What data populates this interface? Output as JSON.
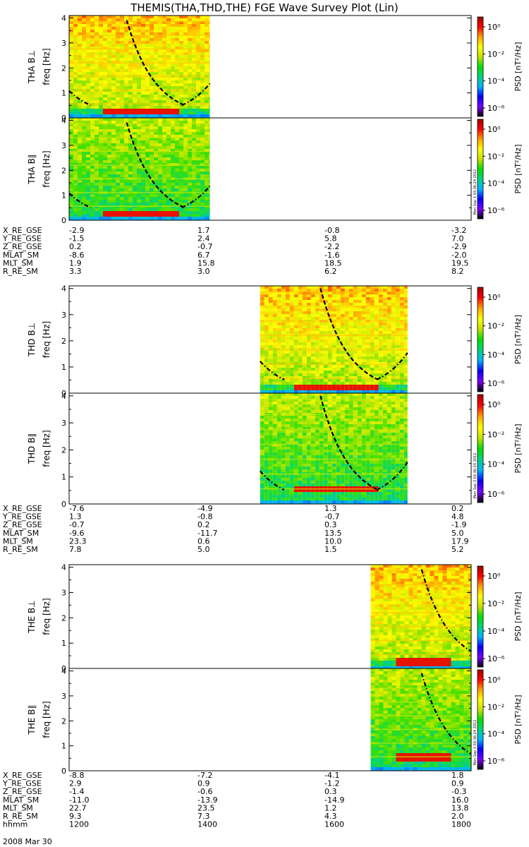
{
  "title": "THEMIS(THA,THD,THE) FGE Wave Survey Plot (Lin)",
  "colors": {
    "colormap": [
      "#000000",
      "#7b00ff",
      "#0000ff",
      "#00b4ff",
      "#00d47a",
      "#00e000",
      "#c8e000",
      "#ffff00",
      "#ffa000",
      "#ff0000",
      "#a00000"
    ]
  },
  "chart_data": [
    {
      "type": "heatmap",
      "panel": "THA B⊥",
      "ylabel": "THA B⊥",
      "ylabel2": "freq [Hz]",
      "xlim": [
        1200,
        1800
      ],
      "ylim": [
        0,
        4.1
      ],
      "yticks": [
        0,
        1,
        2,
        3,
        4
      ],
      "data_interval": [
        1200,
        1410
      ],
      "intensity": 0.55,
      "low_band": 0.3,
      "cyclotron_curves": [
        {
          "center": 1300,
          "style": "dashdot"
        },
        {
          "center": 1440,
          "style": "dashed"
        }
      ],
      "colorbar": {
        "label": "PSD [nT²/Hz]",
        "ticks": [
          "10⁰",
          "10⁻²",
          "10⁻⁴",
          "10⁻⁶"
        ]
      }
    },
    {
      "type": "heatmap",
      "panel": "THA B∥",
      "ylabel": "THA B∥",
      "ylabel2": "freq [Hz]",
      "xlim": [
        1200,
        1800
      ],
      "ylim": [
        0,
        4.1
      ],
      "yticks": [
        0,
        1,
        2,
        3,
        4
      ],
      "data_interval": [
        1200,
        1410
      ],
      "intensity": 0.35,
      "low_band": 0.3,
      "cyclotron_curves": [
        {
          "center": 1300,
          "style": "dashdot"
        },
        {
          "center": 1440,
          "style": "dashed"
        }
      ],
      "colorbar": {
        "label": "PSD [nT²/Hz]",
        "ticks": [
          "10⁰",
          "10⁻²",
          "10⁻⁴",
          "10⁻⁶"
        ]
      }
    },
    {
      "type": "heatmap",
      "panel": "THD B⊥",
      "ylabel": "THD B⊥",
      "ylabel2": "freq [Hz]",
      "xlim": [
        1200,
        1800
      ],
      "ylim": [
        0,
        4.1
      ],
      "yticks": [
        0,
        1,
        2,
        3,
        4
      ],
      "data_interval": [
        1485,
        1705
      ],
      "intensity": 0.55,
      "low_band": 0.3,
      "cyclotron_curves": [
        {
          "center": 1590,
          "style": "dashdot"
        },
        {
          "center": 1730,
          "style": "dashed"
        }
      ],
      "colorbar": {
        "label": "PSD [nT²/Hz]",
        "ticks": [
          "10⁰",
          "10⁻²",
          "10⁻⁴",
          "10⁻⁶"
        ]
      }
    },
    {
      "type": "heatmap",
      "panel": "THD B∥",
      "ylabel": "THD B∥",
      "ylabel2": "freq [Hz]",
      "xlim": [
        1200,
        1800
      ],
      "ylim": [
        0,
        4.1
      ],
      "yticks": [
        0,
        1,
        2,
        3,
        4
      ],
      "data_interval": [
        1485,
        1705
      ],
      "intensity": 0.35,
      "low_band": 0.6,
      "cyclotron_curves": [
        {
          "center": 1590,
          "style": "dashdot"
        },
        {
          "center": 1730,
          "style": "dashed"
        }
      ],
      "colorbar": {
        "label": "PSD [nT²/Hz]",
        "ticks": [
          "10⁰",
          "10⁻²",
          "10⁻⁴",
          "10⁻⁶"
        ]
      }
    },
    {
      "type": "heatmap",
      "panel": "THE B⊥",
      "ylabel": "THE B⊥",
      "ylabel2": "freq [Hz]",
      "xlim": [
        1200,
        1800
      ],
      "ylim": [
        0,
        4.1
      ],
      "yticks": [
        0,
        1,
        2,
        3,
        4
      ],
      "data_interval": [
        1650,
        1800
      ],
      "intensity": 0.55,
      "low_band": 0.3,
      "cyclotron_curves": [
        {
          "center": 1880,
          "style": "dashdot"
        }
      ],
      "colorbar": {
        "label": "PSD [nT²/Hz]",
        "ticks": [
          "10⁰",
          "10⁻²",
          "10⁻⁴",
          "10⁻⁶"
        ]
      }
    },
    {
      "type": "heatmap",
      "panel": "THE B∥",
      "ylabel": "THE B∥",
      "ylabel2": "freq [Hz]",
      "xlim": [
        1200,
        1800
      ],
      "ylim": [
        0,
        4.1
      ],
      "yticks": [
        0,
        1,
        2,
        3,
        4
      ],
      "data_interval": [
        1650,
        1800
      ],
      "intensity": 0.35,
      "low_band": 0.6,
      "cyclotron_curves": [
        {
          "center": 1880,
          "style": "dashdot"
        }
      ],
      "colorbar": {
        "label": "PSD [nT²/Hz]",
        "ticks": [
          "10⁰",
          "10⁻²",
          "10⁻⁴",
          "10⁻⁶"
        ]
      }
    }
  ],
  "stamp": "Mon Sep 3 03:36:24 2012",
  "ephemeris": [
    {
      "rows": [
        {
          "label": "X_RE_GSE",
          "values": [
            "-2.9",
            "1.7",
            "-0.8",
            "-3.2"
          ]
        },
        {
          "label": "Y_RE_GSE",
          "values": [
            "-1.5",
            "2.4",
            "5.8",
            "7.0"
          ]
        },
        {
          "label": "Z_RE_GSE",
          "values": [
            "0.2",
            "-0.7",
            "-2.2",
            "-2.9"
          ]
        },
        {
          "label": "MLAT_SM",
          "values": [
            "-8.6",
            "6.7",
            "-1.6",
            "-2.0"
          ]
        },
        {
          "label": "MLT_SM",
          "values": [
            "1.9",
            "15.8",
            "18.5",
            "19.5"
          ]
        },
        {
          "label": "R_RE_SM",
          "values": [
            "3.3",
            "3.0",
            "6.2",
            "8.2"
          ]
        }
      ]
    },
    {
      "rows": [
        {
          "label": "X_RE_GSE",
          "values": [
            "-7.6",
            "-4.9",
            "1.3",
            "0.2"
          ]
        },
        {
          "label": "Y_RE_GSE",
          "values": [
            "1.3",
            "-0.8",
            "-0.7",
            "4.8"
          ]
        },
        {
          "label": "Z_RE_GSE",
          "values": [
            "-0.7",
            "0.2",
            "0.3",
            "-1.9"
          ]
        },
        {
          "label": "MLAT_SM",
          "values": [
            "-9.6",
            "-11.7",
            "13.5",
            "5.0"
          ]
        },
        {
          "label": "MLT_SM",
          "values": [
            "23.3",
            "0.6",
            "10.0",
            "17.9"
          ]
        },
        {
          "label": "R_RE_SM",
          "values": [
            "7.8",
            "5.0",
            "1.5",
            "5.2"
          ]
        }
      ]
    },
    {
      "rows": [
        {
          "label": "X_RE_GSE",
          "values": [
            "-8.8",
            "-7.2",
            "-4.1",
            "1.8"
          ]
        },
        {
          "label": "Y_RE_GSE",
          "values": [
            "2.9",
            "0.9",
            "-1.2",
            "0.9"
          ]
        },
        {
          "label": "Z_RE_GSE",
          "values": [
            "-1.4",
            "-0.6",
            "0.3",
            "-0.3"
          ]
        },
        {
          "label": "MLAT_SM",
          "values": [
            "-11.0",
            "-13.9",
            "-14.9",
            "16.0"
          ]
        },
        {
          "label": "MLT_SM",
          "values": [
            "22.7",
            "23.5",
            "1.2",
            "13.8"
          ]
        },
        {
          "label": "R_RE_SM",
          "values": [
            "9.3",
            "7.3",
            "4.3",
            "2.0"
          ]
        },
        {
          "label": "hhmm",
          "values": [
            "1200",
            "1400",
            "1600",
            "1800"
          ]
        }
      ]
    }
  ],
  "date_label": "2008 Mar 30"
}
